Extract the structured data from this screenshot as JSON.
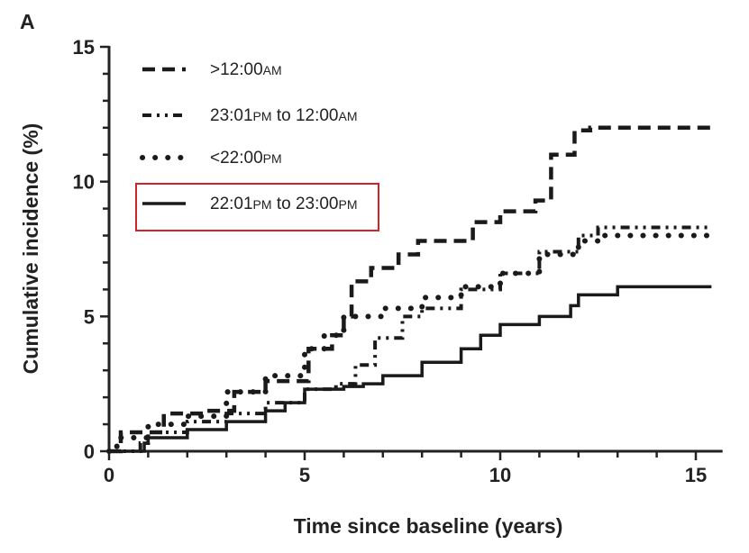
{
  "chart_data": {
    "type": "line",
    "panel_label": "A",
    "xlabel": "Time since baseline (years)",
    "ylabel": "Cumulative incidence (%)",
    "xlim": [
      0,
      15.5
    ],
    "ylim": [
      0,
      15
    ],
    "xticks": [
      "0",
      "5",
      "10",
      "15"
    ],
    "yticks": [
      "0",
      "5",
      "10",
      "15"
    ],
    "legend_placement": "top-left",
    "highlight_color": "#d0242b",
    "series": [
      {
        "name": ">12:00AM",
        "name_main": ">12:00",
        "name_suffix": "AM",
        "style": "dashed",
        "highlighted": false,
        "x": [
          0,
          0.3,
          1.4,
          2.4,
          3.2,
          4.0,
          5.1,
          5.7,
          6.0,
          6.2,
          6.7,
          7.4,
          7.9,
          9.3,
          10.0,
          10.9,
          11.3,
          11.9,
          12.3,
          15.4
        ],
        "y": [
          0,
          0.7,
          1.4,
          1.5,
          2.2,
          2.6,
          3.8,
          4.3,
          5.0,
          6.3,
          6.8,
          7.3,
          7.8,
          8.5,
          8.9,
          9.3,
          11.0,
          11.9,
          12.0,
          12.0
        ]
      },
      {
        "name": "23:01PM to 12:00AM",
        "name_main": "23:01",
        "name_suffix": "PM",
        "name_mid": " to 12:00",
        "name_suffix2": "AM",
        "style": "dashdot",
        "highlighted": false,
        "x": [
          0,
          0.8,
          1.0,
          2.0,
          3.0,
          4.0,
          5.0,
          5.8,
          6.3,
          6.8,
          7.5,
          8.0,
          9.0,
          10.0,
          11.0,
          12.0,
          12.5,
          15.4
        ],
        "y": [
          0,
          0.3,
          0.7,
          1.1,
          1.4,
          1.8,
          2.3,
          2.5,
          3.2,
          4.2,
          5.0,
          5.3,
          6.0,
          6.6,
          7.4,
          8.0,
          8.3,
          8.3
        ]
      },
      {
        "name": "<22:00PM",
        "name_main": "<22:00",
        "name_suffix": "PM",
        "style": "dotted",
        "highlighted": false,
        "x": [
          0,
          0.2,
          1.0,
          2.0,
          3.0,
          4.0,
          5.0,
          5.5,
          6.0,
          7.0,
          8.0,
          9.0,
          10.0,
          11.0,
          12.0,
          12.5,
          15.4
        ],
        "y": [
          0,
          0.5,
          1.0,
          1.3,
          2.2,
          2.8,
          3.8,
          4.3,
          5.0,
          5.3,
          5.7,
          6.1,
          6.6,
          7.3,
          7.8,
          8.0,
          8.0
        ]
      },
      {
        "name": "22:01PM to 23:00PM",
        "name_main": "22:01",
        "name_suffix": "PM",
        "name_mid": " to 23:00",
        "name_suffix2": "PM",
        "style": "solid",
        "highlighted": true,
        "x": [
          0,
          0.9,
          1.0,
          2.0,
          3.0,
          4.0,
          4.5,
          5.0,
          6.0,
          6.5,
          7.0,
          8.0,
          9.0,
          9.5,
          10.0,
          11.0,
          11.8,
          12.0,
          13.0,
          15.4
        ],
        "y": [
          0,
          0.3,
          0.5,
          0.8,
          1.1,
          1.5,
          1.8,
          2.3,
          2.4,
          2.5,
          2.8,
          3.3,
          3.8,
          4.3,
          4.7,
          5.0,
          5.4,
          5.8,
          6.1,
          6.1
        ]
      }
    ]
  }
}
